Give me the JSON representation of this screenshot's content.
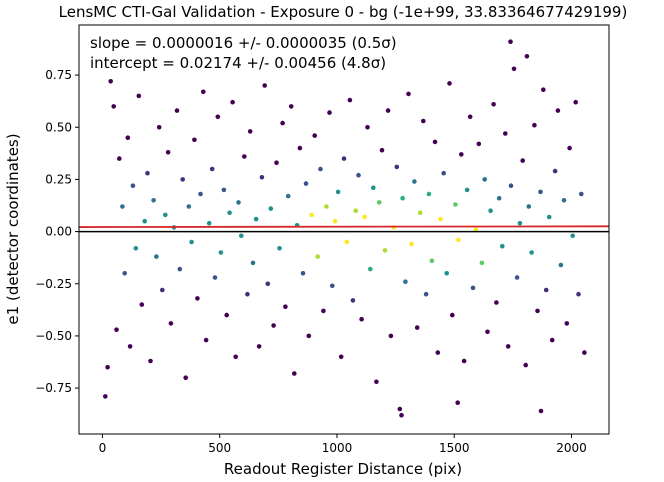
{
  "chart_data": {
    "type": "scatter",
    "title": "LensMC CTI-Gal Validation - Exposure 0 - bg (-1e+99, 33.83364677429199)",
    "xlabel": "Readout Register Distance (pix)",
    "ylabel": "e1 (detector coordinates)",
    "xlim": [
      -100,
      2160
    ],
    "ylim": [
      -0.97,
      0.99
    ],
    "xticks": [
      0,
      500,
      1000,
      1500,
      2000
    ],
    "xtick_labels": [
      "0",
      "500",
      "1000",
      "1500",
      "2000"
    ],
    "yticks": [
      -0.75,
      -0.5,
      -0.25,
      0.0,
      0.25,
      0.5,
      0.75
    ],
    "ytick_labels": [
      "−0.75",
      "−0.50",
      "−0.25",
      "0.00",
      "0.25",
      "0.50",
      "0.75"
    ],
    "grid": false,
    "annotations": {
      "slope": "slope = 0.0000016 +/- 0.0000035 (0.5σ)",
      "intercept": "intercept = 0.02174 +/- 0.00456 (4.8σ)"
    },
    "fit_line": {
      "slope": 1.6e-06,
      "intercept": 0.02174,
      "color": "#d62728"
    },
    "reference_line": {
      "y": 0.0,
      "color": "#000000"
    },
    "colormap": "viridis (point density)",
    "colors": {
      "low_density": "#440154",
      "mid_density": "#21918c",
      "high_density": "#fde725"
    },
    "points": [
      [
        12,
        -0.79
      ],
      [
        22,
        -0.65
      ],
      [
        35,
        0.72
      ],
      [
        48,
        0.6
      ],
      [
        60,
        -0.47
      ],
      [
        72,
        0.35
      ],
      [
        85,
        0.12
      ],
      [
        95,
        -0.2
      ],
      [
        108,
        0.45
      ],
      [
        118,
        -0.55
      ],
      [
        130,
        0.22
      ],
      [
        142,
        -0.08
      ],
      [
        155,
        0.65
      ],
      [
        168,
        -0.35
      ],
      [
        180,
        0.05
      ],
      [
        192,
        0.28
      ],
      [
        205,
        -0.62
      ],
      [
        218,
        0.15
      ],
      [
        230,
        -0.12
      ],
      [
        242,
        0.5
      ],
      [
        255,
        -0.28
      ],
      [
        268,
        0.08
      ],
      [
        280,
        0.38
      ],
      [
        292,
        -0.44
      ],
      [
        305,
        0.02
      ],
      [
        318,
        0.58
      ],
      [
        330,
        -0.18
      ],
      [
        342,
        0.25
      ],
      [
        355,
        -0.7
      ],
      [
        368,
        0.12
      ],
      [
        380,
        -0.05
      ],
      [
        392,
        0.44
      ],
      [
        405,
        -0.32
      ],
      [
        418,
        0.18
      ],
      [
        430,
        0.67
      ],
      [
        442,
        -0.52
      ],
      [
        455,
        0.04
      ],
      [
        468,
        0.3
      ],
      [
        480,
        -0.22
      ],
      [
        492,
        0.55
      ],
      [
        505,
        -0.1
      ],
      [
        518,
        0.2
      ],
      [
        530,
        -0.4
      ],
      [
        542,
        0.09
      ],
      [
        555,
        0.62
      ],
      [
        568,
        -0.6
      ],
      [
        580,
        0.14
      ],
      [
        592,
        -0.02
      ],
      [
        605,
        0.36
      ],
      [
        618,
        -0.3
      ],
      [
        630,
        0.48
      ],
      [
        642,
        -0.15
      ],
      [
        655,
        0.06
      ],
      [
        668,
        -0.55
      ],
      [
        680,
        0.26
      ],
      [
        692,
        0.7
      ],
      [
        705,
        -0.25
      ],
      [
        718,
        0.11
      ],
      [
        730,
        -0.45
      ],
      [
        742,
        0.33
      ],
      [
        755,
        -0.08
      ],
      [
        768,
        0.52
      ],
      [
        780,
        -0.36
      ],
      [
        792,
        0.17
      ],
      [
        805,
        0.6
      ],
      [
        818,
        -0.68
      ],
      [
        830,
        0.03
      ],
      [
        842,
        0.4
      ],
      [
        855,
        -0.2
      ],
      [
        868,
        0.23
      ],
      [
        880,
        -0.5
      ],
      [
        892,
        0.08
      ],
      [
        905,
        0.46
      ],
      [
        918,
        -0.12
      ],
      [
        930,
        0.3
      ],
      [
        942,
        -0.38
      ],
      [
        955,
        0.12
      ],
      [
        968,
        0.57
      ],
      [
        980,
        -0.26
      ],
      [
        992,
        0.05
      ],
      [
        1005,
        0.19
      ],
      [
        1018,
        -0.6
      ],
      [
        1030,
        0.35
      ],
      [
        1042,
        -0.05
      ],
      [
        1055,
        0.63
      ],
      [
        1068,
        -0.33
      ],
      [
        1080,
        0.1
      ],
      [
        1092,
        0.27
      ],
      [
        1105,
        -0.42
      ],
      [
        1118,
        0.07
      ],
      [
        1130,
        0.5
      ],
      [
        1142,
        -0.18
      ],
      [
        1155,
        0.21
      ],
      [
        1168,
        -0.72
      ],
      [
        1180,
        0.14
      ],
      [
        1192,
        0.39
      ],
      [
        1205,
        -0.09
      ],
      [
        1218,
        0.58
      ],
      [
        1230,
        -0.5
      ],
      [
        1242,
        0.02
      ],
      [
        1255,
        0.31
      ],
      [
        1268,
        -0.85
      ],
      [
        1280,
        0.16
      ],
      [
        1292,
        -0.24
      ],
      [
        1305,
        0.66
      ],
      [
        1318,
        -0.06
      ],
      [
        1330,
        0.24
      ],
      [
        1342,
        -0.46
      ],
      [
        1355,
        0.09
      ],
      [
        1368,
        0.53
      ],
      [
        1380,
        -0.3
      ],
      [
        1392,
        0.18
      ],
      [
        1405,
        -0.14
      ],
      [
        1418,
        0.43
      ],
      [
        1430,
        -0.58
      ],
      [
        1442,
        0.06
      ],
      [
        1455,
        0.28
      ],
      [
        1468,
        -0.2
      ],
      [
        1480,
        0.71
      ],
      [
        1492,
        -0.4
      ],
      [
        1505,
        0.13
      ],
      [
        1518,
        -0.04
      ],
      [
        1530,
        0.37
      ],
      [
        1542,
        -0.62
      ],
      [
        1555,
        0.2
      ],
      [
        1568,
        0.55
      ],
      [
        1580,
        -0.27
      ],
      [
        1592,
        0.01
      ],
      [
        1605,
        0.42
      ],
      [
        1618,
        -0.15
      ],
      [
        1630,
        0.25
      ],
      [
        1642,
        -0.48
      ],
      [
        1655,
        0.1
      ],
      [
        1668,
        0.61
      ],
      [
        1680,
        -0.34
      ],
      [
        1692,
        0.16
      ],
      [
        1705,
        -0.07
      ],
      [
        1718,
        0.47
      ],
      [
        1730,
        -0.55
      ],
      [
        1742,
        0.22
      ],
      [
        1755,
        0.78
      ],
      [
        1768,
        -0.22
      ],
      [
        1780,
        0.04
      ],
      [
        1792,
        0.34
      ],
      [
        1805,
        -0.64
      ],
      [
        1818,
        0.12
      ],
      [
        1830,
        -0.1
      ],
      [
        1842,
        0.51
      ],
      [
        1855,
        -0.38
      ],
      [
        1868,
        0.19
      ],
      [
        1880,
        0.68
      ],
      [
        1892,
        -0.28
      ],
      [
        1905,
        0.07
      ],
      [
        1918,
        -0.52
      ],
      [
        1930,
        0.29
      ],
      [
        1942,
        0.58
      ],
      [
        1955,
        -0.16
      ],
      [
        1968,
        0.15
      ],
      [
        1980,
        -0.44
      ],
      [
        1992,
        0.4
      ],
      [
        2005,
        -0.02
      ],
      [
        2018,
        0.62
      ],
      [
        2030,
        -0.3
      ],
      [
        2042,
        0.18
      ],
      [
        2055,
        -0.58
      ],
      [
        1740,
        0.91
      ],
      [
        1810,
        0.84
      ],
      [
        1275,
        -0.88
      ],
      [
        1515,
        -0.82
      ],
      [
        1870,
        -0.86
      ]
    ]
  }
}
